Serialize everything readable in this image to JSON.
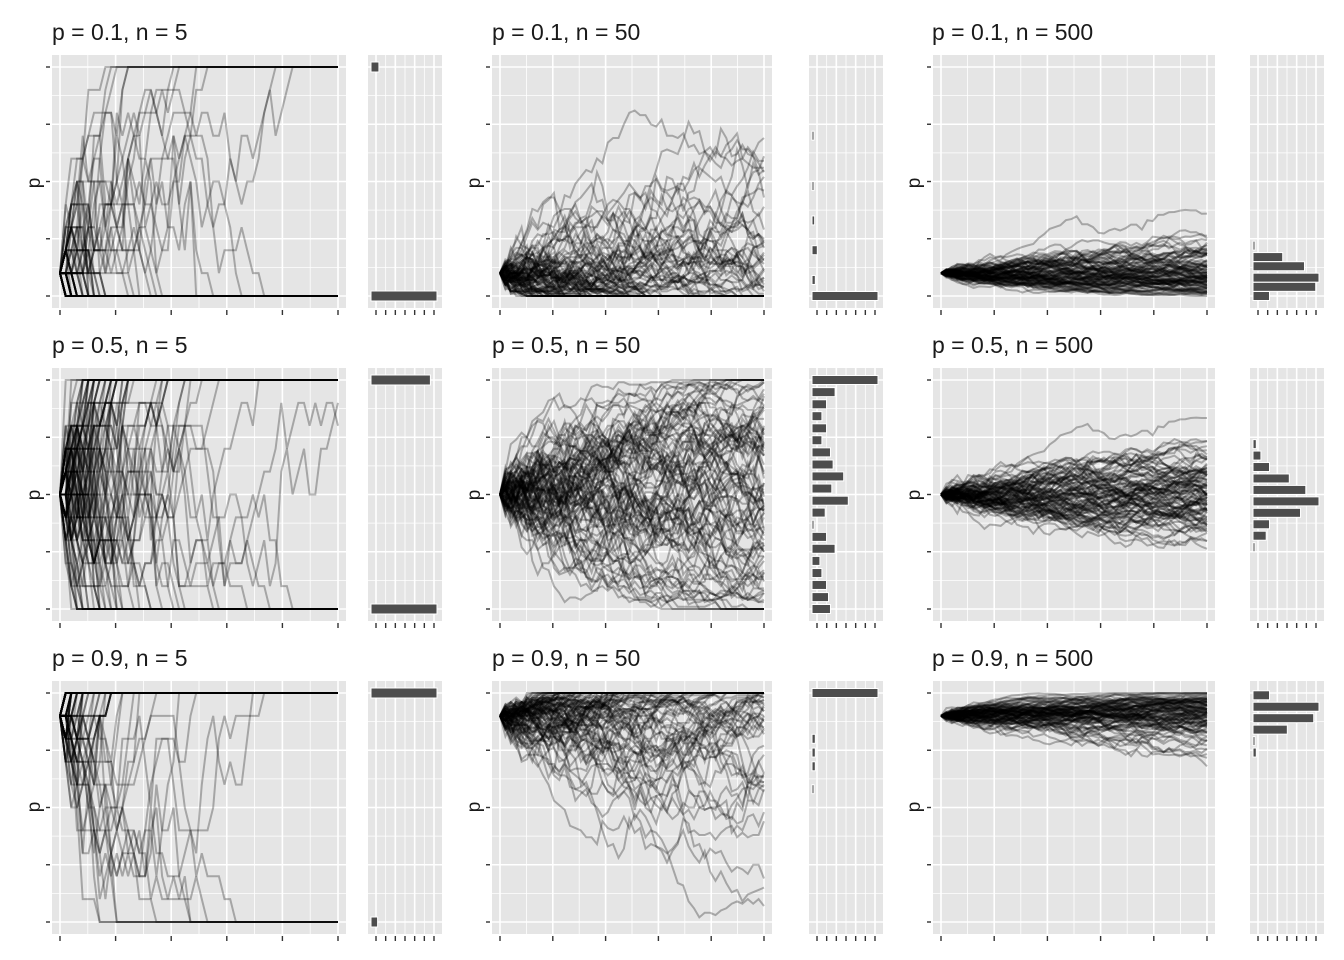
{
  "figure": {
    "background": "#ffffff",
    "panel_background": "#e5e5e5",
    "gridline_color": "#ffffff",
    "line_color": "#000000",
    "bar_color": "#4d4d4d"
  },
  "chart_data": [
    {
      "type": "line",
      "title": "p = 0.1, n = 5",
      "ylabel": "p",
      "xlabel": "",
      "p": 0.1,
      "n": 5,
      "description_of_series": "Many semi-transparent random-walk trajectories of allele frequency; start at p = 0.1; most fix at 0 or 1",
      "ylim": [
        0,
        1
      ],
      "start_value": 0.1,
      "fixed_at_1_fraction": 0.1,
      "fixed_at_0_fraction": 0.9,
      "grid": true,
      "marginal_histogram": {
        "type": "bar",
        "orientation": "horizontal",
        "bins": [
          {
            "p": 1.0,
            "count": 0.12
          },
          {
            "p": 0.0,
            "count": 1.0
          }
        ]
      }
    },
    {
      "type": "line",
      "title": "p = 0.1, n = 50",
      "ylabel": "p",
      "xlabel": "",
      "p": 0.1,
      "n": 50,
      "ylim": [
        0,
        1
      ],
      "start_value": 0.1,
      "grid": true,
      "marginal_histogram": {
        "type": "bar",
        "orientation": "horizontal",
        "bins": [
          {
            "p": 0.7,
            "count": 0.03
          },
          {
            "p": 0.48,
            "count": 0.03
          },
          {
            "p": 0.33,
            "count": 0.04
          },
          {
            "p": 0.2,
            "count": 0.08
          },
          {
            "p": 0.07,
            "count": 0.05
          },
          {
            "p": 0.0,
            "count": 1.0
          }
        ]
      }
    },
    {
      "type": "line",
      "title": "p = 0.1, n = 500",
      "ylabel": "p",
      "xlabel": "",
      "p": 0.1,
      "n": 500,
      "ylim": [
        0,
        1
      ],
      "start_value": 0.1,
      "grid": true,
      "marginal_histogram": {
        "type": "bar",
        "orientation": "horizontal",
        "bins": [
          {
            "p": 0.22,
            "count": 0.03
          },
          {
            "p": 0.17,
            "count": 0.45
          },
          {
            "p": 0.13,
            "count": 0.78
          },
          {
            "p": 0.08,
            "count": 1.0
          },
          {
            "p": 0.04,
            "count": 0.95
          },
          {
            "p": 0.0,
            "count": 0.25
          }
        ]
      }
    },
    {
      "type": "line",
      "title": "p = 0.5, n = 5",
      "ylabel": "p",
      "xlabel": "",
      "p": 0.5,
      "n": 5,
      "ylim": [
        0,
        1
      ],
      "start_value": 0.5,
      "grid": true,
      "marginal_histogram": {
        "type": "bar",
        "orientation": "horizontal",
        "bins": [
          {
            "p": 1.0,
            "count": 0.9
          },
          {
            "p": 0.0,
            "count": 1.0
          }
        ]
      }
    },
    {
      "type": "line",
      "title": "p = 0.5, n = 50",
      "ylabel": "p",
      "xlabel": "",
      "p": 0.5,
      "n": 50,
      "ylim": [
        0,
        1
      ],
      "start_value": 0.5,
      "grid": true,
      "marginal_histogram": {
        "type": "bar",
        "orientation": "horizontal",
        "bins": [
          {
            "p": 1.0,
            "count": 1.0
          },
          {
            "p": 0.947,
            "count": 0.35
          },
          {
            "p": 0.894,
            "count": 0.22
          },
          {
            "p": 0.842,
            "count": 0.15
          },
          {
            "p": 0.789,
            "count": 0.22
          },
          {
            "p": 0.737,
            "count": 0.15
          },
          {
            "p": 0.684,
            "count": 0.28
          },
          {
            "p": 0.631,
            "count": 0.32
          },
          {
            "p": 0.579,
            "count": 0.48
          },
          {
            "p": 0.526,
            "count": 0.3
          },
          {
            "p": 0.473,
            "count": 0.55
          },
          {
            "p": 0.421,
            "count": 0.2
          },
          {
            "p": 0.368,
            "count": 0.03
          },
          {
            "p": 0.315,
            "count": 0.22
          },
          {
            "p": 0.263,
            "count": 0.35
          },
          {
            "p": 0.21,
            "count": 0.12
          },
          {
            "p": 0.157,
            "count": 0.15
          },
          {
            "p": 0.105,
            "count": 0.22
          },
          {
            "p": 0.052,
            "count": 0.25
          },
          {
            "p": 0.0,
            "count": 0.28
          }
        ]
      }
    },
    {
      "type": "line",
      "title": "p = 0.5, n = 500",
      "ylabel": "p",
      "xlabel": "",
      "p": 0.5,
      "n": 500,
      "ylim": [
        0,
        1
      ],
      "start_value": 0.5,
      "grid": true,
      "marginal_histogram": {
        "type": "bar",
        "orientation": "horizontal",
        "bins": [
          {
            "p": 0.72,
            "count": 0.05
          },
          {
            "p": 0.67,
            "count": 0.12
          },
          {
            "p": 0.62,
            "count": 0.25
          },
          {
            "p": 0.57,
            "count": 0.55
          },
          {
            "p": 0.52,
            "count": 0.8
          },
          {
            "p": 0.47,
            "count": 1.0
          },
          {
            "p": 0.42,
            "count": 0.72
          },
          {
            "p": 0.37,
            "count": 0.25
          },
          {
            "p": 0.32,
            "count": 0.2
          },
          {
            "p": 0.27,
            "count": 0.02
          }
        ]
      }
    },
    {
      "type": "line",
      "title": "p = 0.9, n = 5",
      "ylabel": "p",
      "xlabel": "",
      "p": 0.9,
      "n": 5,
      "ylim": [
        0,
        1
      ],
      "start_value": 0.9,
      "grid": true,
      "marginal_histogram": {
        "type": "bar",
        "orientation": "horizontal",
        "bins": [
          {
            "p": 1.0,
            "count": 1.0
          },
          {
            "p": 0.0,
            "count": 0.1
          }
        ]
      }
    },
    {
      "type": "line",
      "title": "p = 0.9, n = 50",
      "ylabel": "p",
      "xlabel": "",
      "p": 0.9,
      "n": 50,
      "ylim": [
        0,
        1
      ],
      "start_value": 0.9,
      "grid": true,
      "marginal_histogram": {
        "type": "bar",
        "orientation": "horizontal",
        "bins": [
          {
            "p": 1.0,
            "count": 1.0
          },
          {
            "p": 0.8,
            "count": 0.05
          },
          {
            "p": 0.74,
            "count": 0.05
          },
          {
            "p": 0.68,
            "count": 0.05
          },
          {
            "p": 0.58,
            "count": 0.03
          }
        ]
      }
    },
    {
      "type": "line",
      "title": "p = 0.9, n = 500",
      "ylabel": "p",
      "xlabel": "",
      "p": 0.9,
      "n": 500,
      "ylim": [
        0,
        1
      ],
      "start_value": 0.9,
      "grid": true,
      "marginal_histogram": {
        "type": "bar",
        "orientation": "horizontal",
        "bins": [
          {
            "p": 0.99,
            "count": 0.25
          },
          {
            "p": 0.94,
            "count": 1.0
          },
          {
            "p": 0.89,
            "count": 0.92
          },
          {
            "p": 0.84,
            "count": 0.52
          },
          {
            "p": 0.79,
            "count": 0.03
          },
          {
            "p": 0.74,
            "count": 0.05
          }
        ]
      }
    }
  ]
}
